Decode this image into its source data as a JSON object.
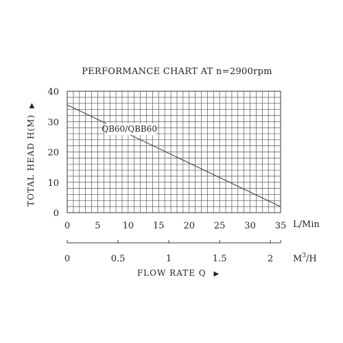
{
  "chart_data": {
    "type": "line",
    "title": "PERFORMANCE CHART AT n=2900rpm",
    "ylabel": "TOTAL HEAD H(M)",
    "ylabel_arrow": "▶",
    "xlabel": "FLOW RATE Q",
    "xlabel_arrow": "▶",
    "x_unit_primary": "L/Min",
    "x_unit_secondary": "M",
    "x_unit_secondary_sup": "3",
    "x_unit_secondary_suffix": "/H",
    "xlim": [
      0,
      35
    ],
    "ylim": [
      0,
      40
    ],
    "x_ticks": [
      0,
      5,
      10,
      15,
      20,
      25,
      30,
      35
    ],
    "x_tick_labels": [
      "0",
      "5",
      "10",
      "15",
      "20",
      "25",
      "30",
      "35"
    ],
    "y_ticks": [
      0,
      10,
      20,
      30,
      40
    ],
    "y_tick_labels": [
      "0",
      "10",
      "20",
      "30",
      "40"
    ],
    "x2_ticks": [
      0,
      0.5,
      1,
      1.5,
      2
    ],
    "x2_tick_labels": [
      "0",
      "0.5",
      "1",
      "1.5",
      "2"
    ],
    "x2_lim_m3h": [
      0,
      2.1
    ],
    "grid": true,
    "series": [
      {
        "name": "QB60/QBB60",
        "x": [
          0,
          35
        ],
        "y": [
          35.5,
          2
        ]
      }
    ],
    "colors": {
      "line": "#333333",
      "grid": "#555555",
      "text": "#222222",
      "background": "#ffffff"
    }
  }
}
